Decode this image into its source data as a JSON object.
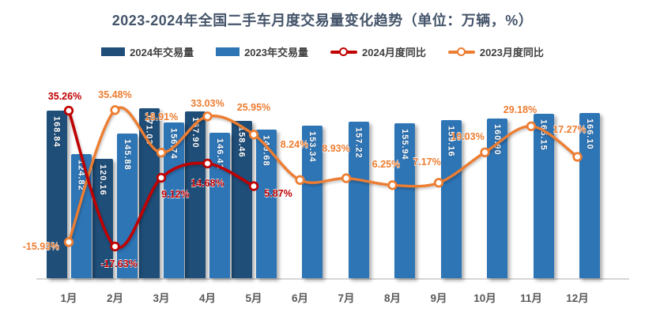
{
  "title": "2023-2024年全国二手车月度交易量变化趋势（单位：万辆，%）",
  "legend": {
    "bar_2024_label": "2024年交易量",
    "bar_2023_label": "2023年交易量",
    "line_2024_label": "2024月度同比",
    "line_2023_label": "2023月度同比"
  },
  "colors": {
    "bar_2024": "#1F4E79",
    "bar_2023": "#2E75B6",
    "line_2024": "#C00000",
    "line_2023": "#ED7D31",
    "title_text": "#44546A",
    "legend_text": "#404040",
    "month_text": "#595959",
    "axis_line": "#D6D6D6"
  },
  "chart_data": {
    "type": "bar",
    "subtype": "bar-line-combo",
    "title": "2023-2024年全国二手车月度交易量变化趋势（单位：万辆，%）",
    "xlabel": "",
    "ylabel": "",
    "grid": false,
    "legend_position": "top",
    "y_axis_visible": false,
    "categories": [
      "1月",
      "2月",
      "3月",
      "4月",
      "5月",
      "6月",
      "7月",
      "8月",
      "9月",
      "10月",
      "11月",
      "12月"
    ],
    "bar_series": [
      {
        "name": "2024年交易量",
        "color": "#1F4E79",
        "unit": "万辆",
        "values": [
          168.84,
          120.16,
          171.03,
          167.9,
          158.46,
          null,
          null,
          null,
          null,
          null,
          null,
          null
        ]
      },
      {
        "name": "2023年交易量",
        "color": "#2E75B6",
        "unit": "万辆",
        "values": [
          124.82,
          145.88,
          156.74,
          146.41,
          149.68,
          153.34,
          157.22,
          155.94,
          159.16,
          160.9,
          165.15,
          166.1
        ]
      }
    ],
    "line_series": [
      {
        "name": "2024月度同比",
        "color": "#C00000",
        "unit": "%",
        "values": [
          35.26,
          -17.63,
          9.12,
          14.68,
          5.87,
          null,
          null,
          null,
          null,
          null,
          null,
          null
        ]
      },
      {
        "name": "2023月度同比",
        "color": "#ED7D31",
        "unit": "%",
        "values": [
          -15.93,
          35.48,
          18.91,
          33.03,
          25.95,
          8.24,
          8.93,
          6.25,
          7.17,
          19.03,
          29.18,
          17.27
        ]
      }
    ]
  }
}
